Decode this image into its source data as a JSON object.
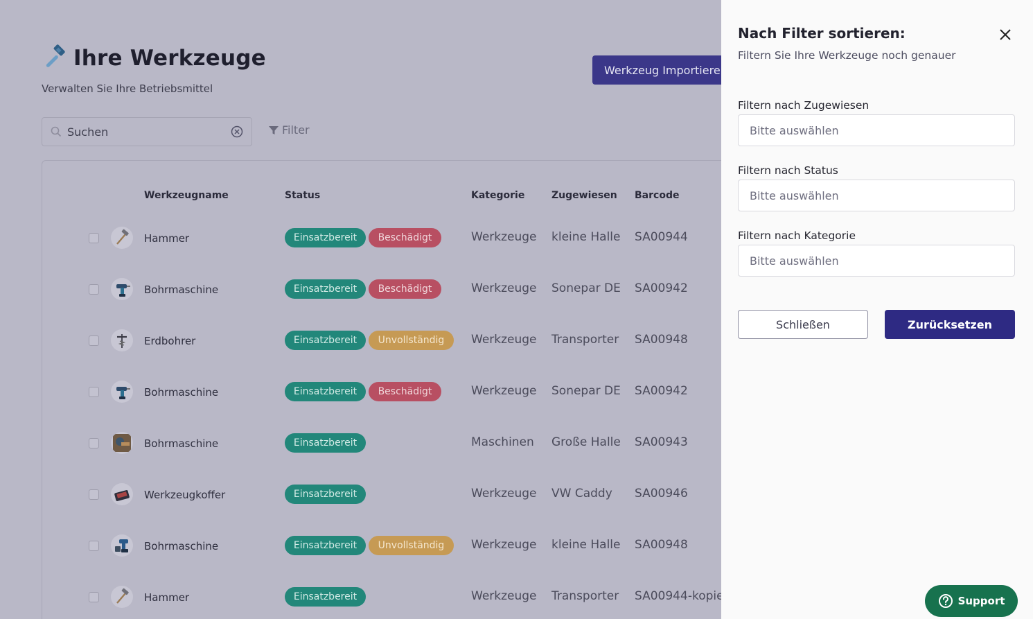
{
  "header": {
    "title": "Ihre Werkzeuge",
    "subtitle": "Verwalten Sie Ihre Betriebsmittel",
    "import_label": "Werkzeug Importieren"
  },
  "toolbar": {
    "search_placeholder": "Suchen",
    "filter_label": "Filter"
  },
  "table": {
    "columns": [
      "Werkzeugname",
      "Status",
      "Kategorie",
      "Zugewiesen",
      "Barcode"
    ],
    "rows": [
      {
        "name": "Hammer",
        "status": [
          "Einsatzbereit",
          "Beschädigt"
        ],
        "category": "Werkzeuge",
        "assigned": "kleine Halle",
        "barcode": "SA00944",
        "icon": "hammer-icon"
      },
      {
        "name": "Bohrmaschine",
        "status": [
          "Einsatzbereit",
          "Beschädigt"
        ],
        "category": "Werkzeuge",
        "assigned": "Sonepar DE",
        "barcode": "SA00942",
        "icon": "drill-icon"
      },
      {
        "name": "Erdbohrer",
        "status": [
          "Einsatzbereit",
          "Unvollständig"
        ],
        "category": "Werkzeuge",
        "assigned": "Transporter",
        "barcode": "SA00948",
        "icon": "earth-auger-icon"
      },
      {
        "name": "Bohrmaschine",
        "status": [
          "Einsatzbereit",
          "Beschädigt"
        ],
        "category": "Werkzeuge",
        "assigned": "Sonepar DE",
        "barcode": "SA00942",
        "icon": "drill-icon"
      },
      {
        "name": "Bohrmaschine",
        "status": [
          "Einsatzbereit"
        ],
        "category": "Maschinen",
        "assigned": "Große Halle",
        "barcode": "SA00943",
        "icon": "drill-photo-icon"
      },
      {
        "name": "Werkzeugkoffer",
        "status": [
          "Einsatzbereit"
        ],
        "category": "Werkzeuge",
        "assigned": "VW Caddy",
        "barcode": "SA00946",
        "icon": "toolbox-icon"
      },
      {
        "name": "Bohrmaschine",
        "status": [
          "Einsatzbereit",
          "Unvollständig"
        ],
        "category": "Werkzeuge",
        "assigned": "kleine Halle",
        "barcode": "SA00948",
        "icon": "drill-set-icon"
      },
      {
        "name": "Hammer",
        "status": [
          "Einsatzbereit"
        ],
        "category": "Werkzeuge",
        "assigned": "Transporter",
        "barcode": "SA00944-kopie",
        "icon": "hammer-icon"
      }
    ]
  },
  "status_colors": {
    "Einsatzbereit": "#22877a",
    "Beschädigt": "#b84f62",
    "Unvollständig": "#c69a54"
  },
  "drawer": {
    "title": "Nach Filter sortieren:",
    "subtitle": "Filtern Sie Ihre Werkzeuge noch genauer",
    "filters": [
      {
        "label": "Filtern nach Zugewiesen",
        "placeholder": "Bitte auswählen"
      },
      {
        "label": "Filtern nach Status",
        "placeholder": "Bitte auswählen"
      },
      {
        "label": "Filtern nach Kategorie",
        "placeholder": "Bitte auswählen"
      }
    ],
    "close_label": "Schließen",
    "reset_label": "Zurücksetzen"
  },
  "support_label": "Support"
}
